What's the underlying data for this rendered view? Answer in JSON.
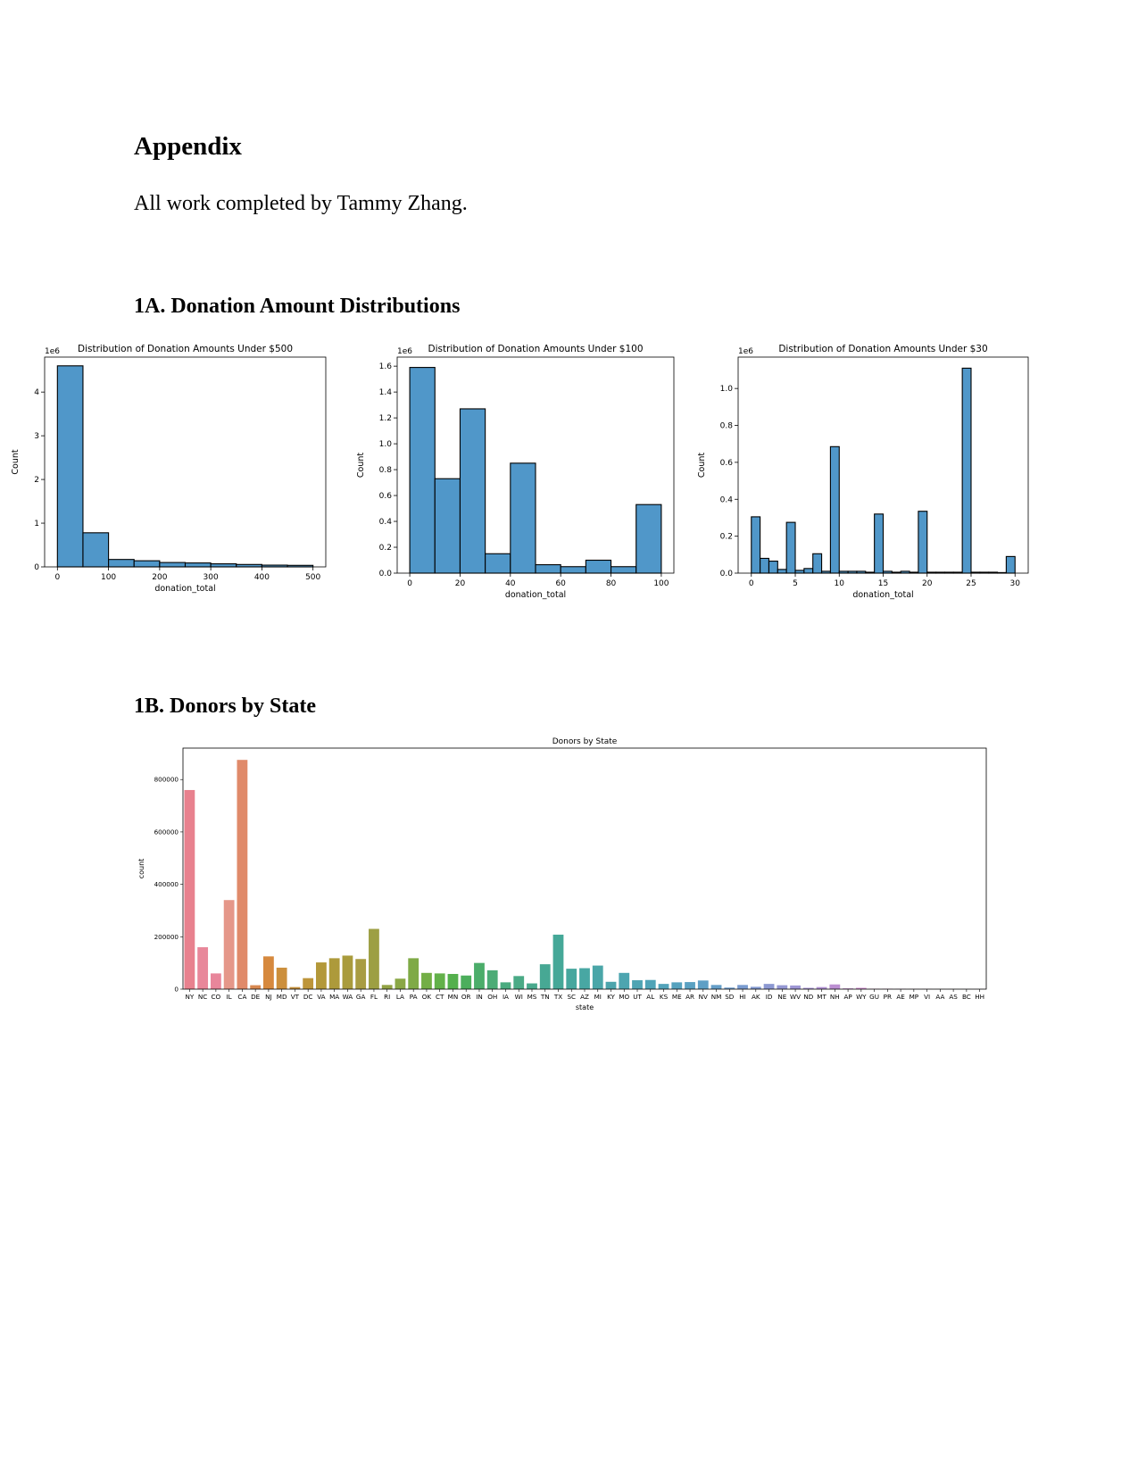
{
  "document": {
    "title": "Appendix",
    "byline": "All work completed by Tammy Zhang.",
    "section_1a": "1A. Donation Amount Distributions",
    "section_1b": "1B. Donors by State"
  },
  "colors": {
    "histogram_fill": "#5097C9",
    "bar_edge": "#000000"
  },
  "chart_data": [
    {
      "type": "bar",
      "title": "Distribution of Donation Amounts Under $500",
      "xlabel": "donation_total",
      "ylabel": "Count",
      "multiplier": "1e6",
      "bin_edges": [
        0,
        50,
        100,
        150,
        200,
        250,
        300,
        350,
        400,
        450,
        500
      ],
      "values": [
        4.6,
        0.78,
        0.17,
        0.14,
        0.1,
        0.09,
        0.07,
        0.055,
        0.04,
        0.035
      ],
      "xlim": [
        -25,
        525
      ],
      "ylim": [
        0,
        4.8
      ],
      "xticks": [
        0,
        100,
        200,
        300,
        400,
        500
      ],
      "xtick_labels": [
        "0",
        "100",
        "200",
        "300",
        "400",
        "500"
      ],
      "yticks": [
        0,
        1,
        2,
        3,
        4
      ],
      "ytick_labels": [
        "0",
        "1",
        "2",
        "3",
        "4"
      ]
    },
    {
      "type": "bar",
      "title": "Distribution of Donation Amounts Under $100",
      "xlabel": "donation_total",
      "ylabel": "Count",
      "multiplier": "1e6",
      "bin_edges": [
        0,
        10,
        20,
        30,
        40,
        50,
        60,
        70,
        80,
        90,
        100
      ],
      "values": [
        1.59,
        0.73,
        1.27,
        0.15,
        0.85,
        0.065,
        0.05,
        0.1,
        0.05,
        0.53
      ],
      "xlim": [
        -5,
        105
      ],
      "ylim": [
        0,
        1.67
      ],
      "xticks": [
        0,
        20,
        40,
        60,
        80,
        100
      ],
      "xtick_labels": [
        "0",
        "20",
        "40",
        "60",
        "80",
        "100"
      ],
      "yticks": [
        0,
        0.2,
        0.4,
        0.6,
        0.8,
        1.0,
        1.2,
        1.4,
        1.6
      ],
      "ytick_labels": [
        "0.0",
        "0.2",
        "0.4",
        "0.6",
        "0.8",
        "1.0",
        "1.2",
        "1.4",
        "1.6"
      ]
    },
    {
      "type": "bar",
      "title": "Distribution of Donation Amounts Under $30",
      "xlabel": "donation_total",
      "ylabel": "Count",
      "multiplier": "1e6",
      "bin_edges": [
        0,
        1,
        2,
        3,
        4,
        5,
        6,
        7,
        8,
        9,
        10,
        11,
        12,
        13,
        14,
        15,
        16,
        17,
        18,
        19,
        20,
        21,
        22,
        23,
        24,
        25,
        26,
        27,
        28,
        29,
        30
      ],
      "values": [
        0.305,
        0.08,
        0.065,
        0.02,
        0.275,
        0.015,
        0.025,
        0.105,
        0.01,
        0.685,
        0.01,
        0.01,
        0.01,
        0.005,
        0.32,
        0.01,
        0.005,
        0.01,
        0.005,
        0.335,
        0.005,
        0.005,
        0.005,
        0.005,
        1.11,
        0.005,
        0.005,
        0.005,
        0.003,
        0.09
      ],
      "xlim": [
        -1.5,
        31.5
      ],
      "ylim": [
        0,
        1.17
      ],
      "xticks": [
        0,
        5,
        10,
        15,
        20,
        25,
        30
      ],
      "xtick_labels": [
        "0",
        "5",
        "10",
        "15",
        "20",
        "25",
        "30"
      ],
      "yticks": [
        0,
        0.2,
        0.4,
        0.6,
        0.8,
        1.0
      ],
      "ytick_labels": [
        "0.0",
        "0.2",
        "0.4",
        "0.6",
        "0.8",
        "1.0"
      ]
    },
    {
      "type": "bar",
      "title": "Donors by State",
      "xlabel": "state",
      "ylabel": "count",
      "categories": [
        "NY",
        "NC",
        "CO",
        "IL",
        "CA",
        "DE",
        "NJ",
        "MD",
        "VT",
        "DC",
        "VA",
        "MA",
        "WA",
        "GA",
        "FL",
        "RI",
        "LA",
        "PA",
        "OK",
        "CT",
        "MN",
        "OR",
        "IN",
        "OH",
        "IA",
        "WI",
        "MS",
        "TN",
        "TX",
        "SC",
        "AZ",
        "MI",
        "KY",
        "MO",
        "UT",
        "AL",
        "KS",
        "ME",
        "AR",
        "NV",
        "NM",
        "SD",
        "HI",
        "AK",
        "ID",
        "NE",
        "WV",
        "ND",
        "MT",
        "NH",
        "AP",
        "WY",
        "GU",
        "PR",
        "AE",
        "MP",
        "VI",
        "AA",
        "AS",
        "BC",
        "HH"
      ],
      "values": [
        760000,
        160000,
        60000,
        340000,
        875000,
        15000,
        125000,
        82000,
        8000,
        42000,
        102000,
        118000,
        128000,
        115000,
        230000,
        16000,
        40000,
        118000,
        62000,
        60000,
        58000,
        52000,
        100000,
        72000,
        26000,
        50000,
        22000,
        95000,
        208000,
        78000,
        80000,
        90000,
        28000,
        62000,
        34000,
        35000,
        20000,
        26000,
        27000,
        33000,
        16000,
        6000,
        16000,
        9000,
        20000,
        15000,
        14000,
        5000,
        8000,
        18000,
        3000,
        5000,
        1500,
        1500,
        1000,
        800,
        700,
        500,
        400,
        300,
        300
      ],
      "colors": [
        "#E8818E",
        "#E8879A",
        "#E8869B",
        "#E59789",
        "#E08A6A",
        "#D88850",
        "#D6893E",
        "#CC8F3C",
        "#C5903B",
        "#BD953A",
        "#B39839",
        "#AD9A3B",
        "#A99B3C",
        "#A89C42",
        "#9D9F43",
        "#92A244",
        "#8AA745",
        "#7FAA46",
        "#73AE46",
        "#63B14A",
        "#54B04D",
        "#4CAE5C",
        "#4BAD6A",
        "#4CAC76",
        "#4AAB7F",
        "#4AAA86",
        "#48A98D",
        "#47A894",
        "#45A898",
        "#46A79E",
        "#48A7A3",
        "#4AA6A8",
        "#4CA5AC",
        "#4DA5B0",
        "#4FA4B3",
        "#50A4B7",
        "#52A3BA",
        "#56A2BE",
        "#5AA1C2",
        "#5E9FC5",
        "#659EC8",
        "#709CCC",
        "#7A9BCF",
        "#8399D0",
        "#8C98D1",
        "#9598D3",
        "#9E96D4",
        "#A894D5",
        "#B292D4",
        "#BC8FD2",
        "#C58DD0",
        "#CD8BCE",
        "#D489CB",
        "#DA88C6",
        "#DE87C0",
        "#E286B9",
        "#E586B2",
        "#E786AB",
        "#E887A4",
        "#E8879D",
        "#E88897"
      ],
      "ylim": [
        0,
        920000
      ],
      "yticks": [
        0,
        200000,
        400000,
        600000,
        800000
      ],
      "ytick_labels": [
        "0",
        "200000",
        "400000",
        "600000",
        "800000"
      ]
    }
  ]
}
